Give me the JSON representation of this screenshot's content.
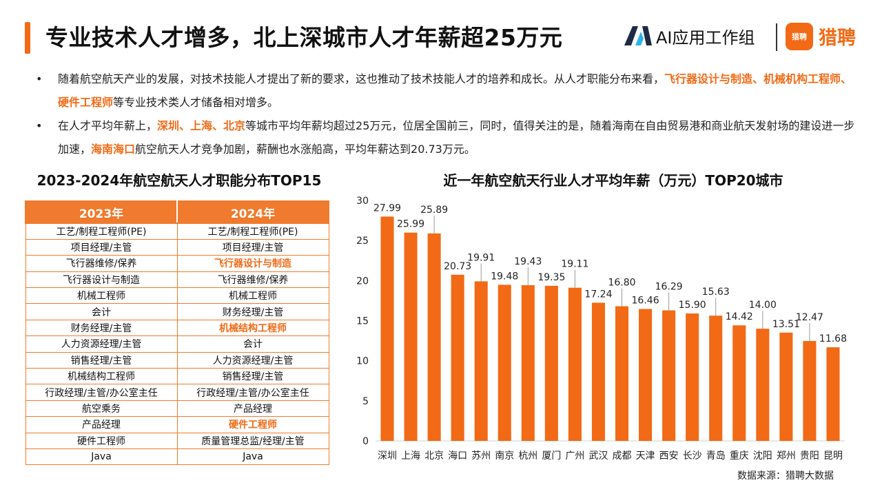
{
  "header": {
    "title": "专业技术人才增多，北上深城市人才年薪超25万元",
    "ai_group": "AI应用工作组",
    "brand_badge": "猎聘",
    "brand_name": "猎聘"
  },
  "bullets": [
    {
      "dot": "•",
      "seg1": "随着航空航天产业的发展，对技术技能人才提出了新的要求，这也推动了技术技能人才的培养和成长。从人才职能分布来看，",
      "highlight1": "飞行器设计与制造、机械机构工程师、硬件工程师",
      "seg2": "等专业技术类人才储备相对增多。"
    },
    {
      "dot": "•",
      "seg1": "在人才平均年薪上，",
      "highlight1": "深圳、上海、北京",
      "seg2": "等城市平均年薪均超过25万元，位居全国前三，同时，值得关注的是，随着海南在自由贸易港和商业航天发射场的建设进一步加速，",
      "highlight2": "海南海口",
      "seg3": "航空航天人才竞争加剧，薪酬也水涨船高，平均年薪达到20.73万元。"
    }
  ],
  "table": {
    "title": "2023-2024年航空航天人才职能分布TOP15",
    "headers": [
      "2023年",
      "2024年"
    ],
    "rows": [
      {
        "y2023": "工艺/制程工程师(PE)",
        "y2024": "工艺/制程工程师(PE)",
        "emph": false
      },
      {
        "y2023": "项目经理/主管",
        "y2024": "项目经理/主管",
        "emph": false
      },
      {
        "y2023": "飞行器维修/保养",
        "y2024": "飞行器设计与制造",
        "emph": true
      },
      {
        "y2023": "飞行器设计与制造",
        "y2024": "飞行器维修/保养",
        "emph": false
      },
      {
        "y2023": "机械工程师",
        "y2024": "机械工程师",
        "emph": false
      },
      {
        "y2023": "会计",
        "y2024": "财务经理/主管",
        "emph": false
      },
      {
        "y2023": "财务经理/主管",
        "y2024": "机械结构工程师",
        "emph": true
      },
      {
        "y2023": "人力资源经理/主管",
        "y2024": "会计",
        "emph": false
      },
      {
        "y2023": "销售经理/主管",
        "y2024": "人力资源经理/主管",
        "emph": false
      },
      {
        "y2023": "机械结构工程师",
        "y2024": "销售经理/主管",
        "emph": false
      },
      {
        "y2023": "行政经理/主管/办公室主任",
        "y2024": "行政经理/主管/办公室主任",
        "emph": false
      },
      {
        "y2023": "航空乘务",
        "y2024": "产品经理",
        "emph": false
      },
      {
        "y2023": "产品经理",
        "y2024": "硬件工程师",
        "emph": true
      },
      {
        "y2023": "硬件工程师",
        "y2024": "质量管理总监/经理/主管",
        "emph": false
      },
      {
        "y2023": "Java",
        "y2024": "Java",
        "emph": false
      }
    ]
  },
  "chart_data": {
    "type": "bar",
    "title": "近一年航空航天行业人才平均年薪（万元）TOP20城市",
    "xlabel": "",
    "ylabel": "",
    "categories": [
      "深圳",
      "上海",
      "北京",
      "海口",
      "苏州",
      "南京",
      "杭州",
      "厦门",
      "广州",
      "武汉",
      "成都",
      "天津",
      "西安",
      "长沙",
      "青岛",
      "重庆",
      "沈阳",
      "郑州",
      "贵阳",
      "昆明"
    ],
    "values": [
      27.99,
      25.99,
      25.89,
      20.73,
      19.91,
      19.48,
      19.43,
      19.35,
      19.11,
      17.24,
      16.8,
      16.46,
      16.29,
      15.9,
      15.63,
      14.42,
      14.0,
      13.51,
      12.47,
      11.68
    ],
    "value_labels": [
      "27.99",
      "25.99",
      "25.89",
      "20.73",
      "19.91",
      "19.48",
      "19.43",
      "19.35",
      "19.11",
      "17.24",
      "16.80",
      "16.46",
      "16.29",
      "15.90",
      "15.63",
      "14.42",
      "14.00",
      "13.51",
      "12.47",
      "11.68"
    ],
    "label_raised": [
      false,
      false,
      true,
      false,
      true,
      false,
      true,
      false,
      true,
      false,
      true,
      false,
      true,
      false,
      true,
      false,
      true,
      false,
      true,
      false
    ],
    "yticks": [
      "0",
      "5",
      "10",
      "15",
      "20",
      "25",
      "30"
    ],
    "ylim": [
      0,
      30
    ],
    "grid": false,
    "legend": "none",
    "bar_color": "#f26a16"
  },
  "source": "数据来源：猎聘大数据",
  "colors": {
    "accent": "#f26a16",
    "table_header": "#f07a2d",
    "ai_logo_dark": "#1f2a44",
    "ai_logo_light": "#2bb3e8"
  }
}
